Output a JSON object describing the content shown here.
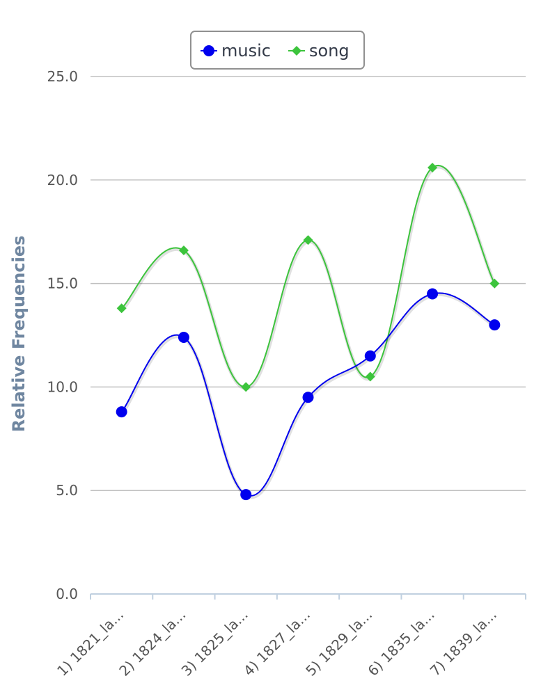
{
  "chart_data": {
    "type": "line",
    "ylabel": "Relative Frequencies",
    "ylim": [
      0,
      25
    ],
    "yticks": [
      "0.0",
      "5.0",
      "10.0",
      "15.0",
      "20.0",
      "25.0"
    ],
    "categories": [
      "1) 1821_la...",
      "2) 1824_la...",
      "3) 1825_la...",
      "4) 1827_la...",
      "5) 1829_la...",
      "6) 1835_la...",
      "7) 1839_la..."
    ],
    "grid": true,
    "legend": "top-center",
    "series": [
      {
        "name": "music",
        "color": "#0000ee",
        "marker": "circle",
        "values": [
          8.8,
          12.4,
          4.8,
          9.5,
          11.5,
          14.5,
          13.0
        ]
      },
      {
        "name": "song",
        "color": "#3cc43c",
        "marker": "diamond",
        "values": [
          13.8,
          16.6,
          10.0,
          17.1,
          10.5,
          20.6,
          15.0
        ]
      }
    ]
  }
}
